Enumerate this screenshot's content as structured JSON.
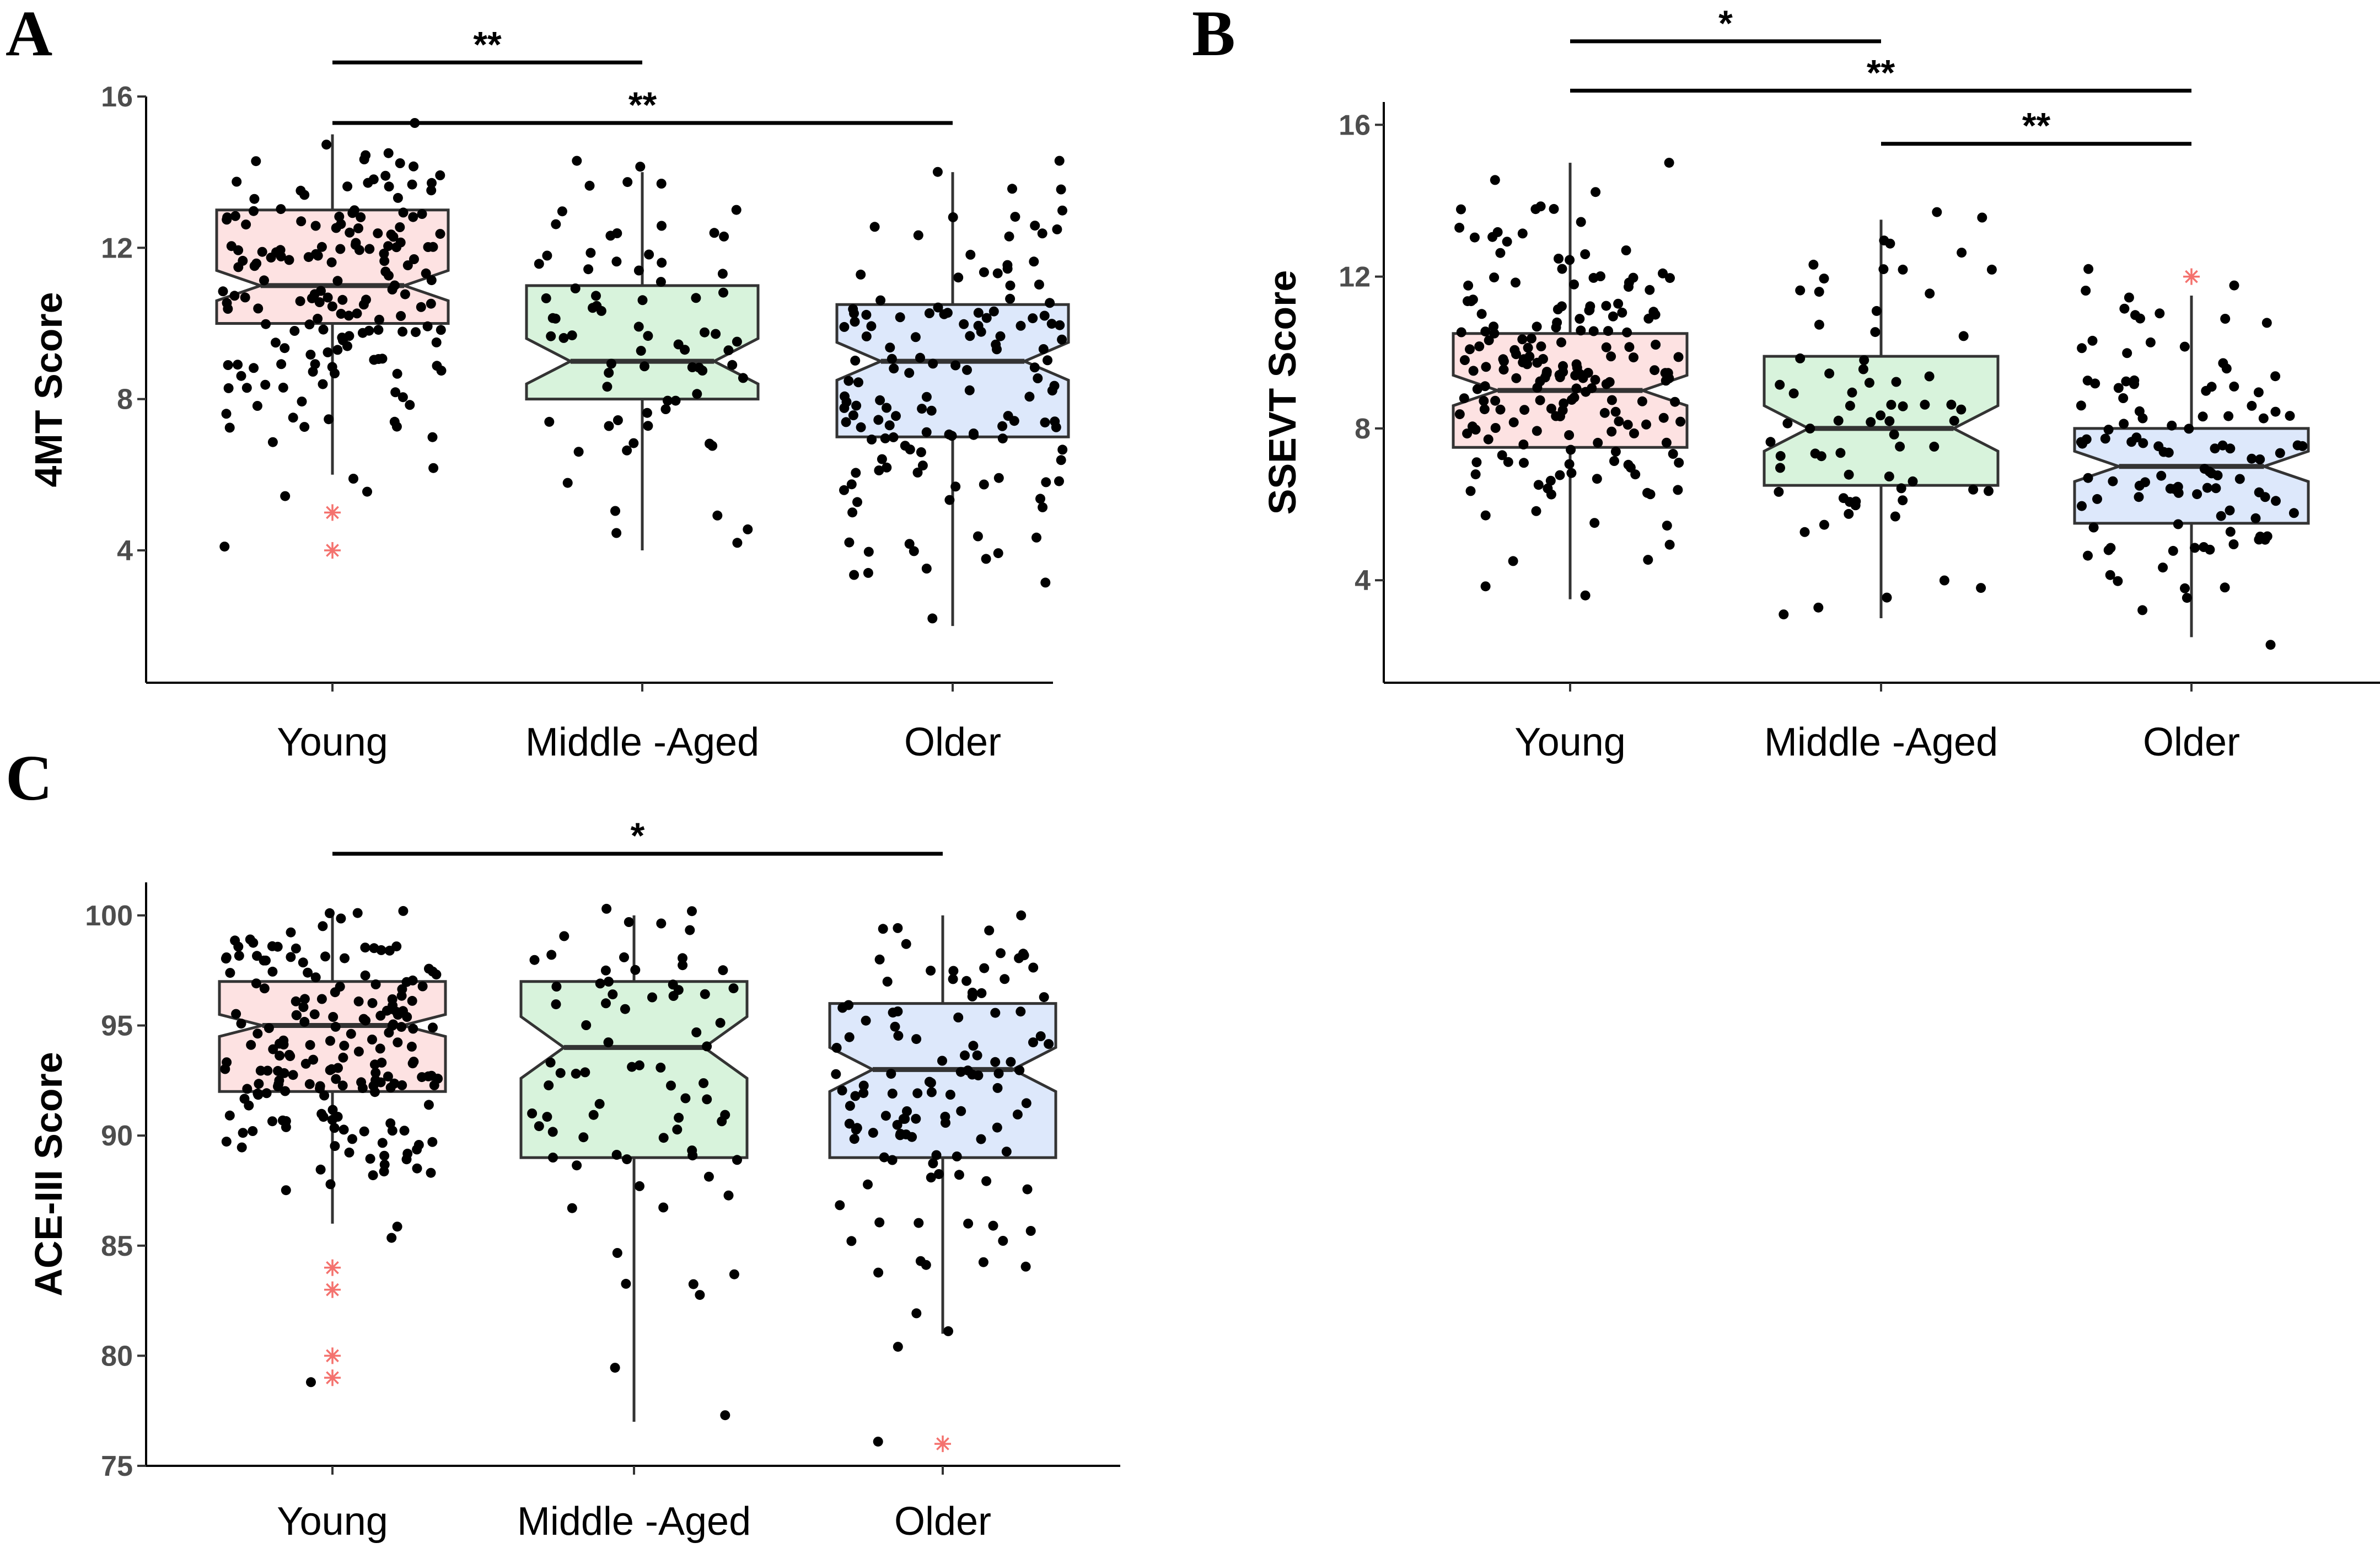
{
  "figure": {
    "background": "#ffffff"
  },
  "style": {
    "group_fills": [
      "#fde2e2",
      "#d8f3dc",
      "#dde8fb"
    ],
    "box_stroke": "#333333",
    "point_color": "#000000",
    "outlier_color": "#f4726e"
  },
  "chart_data": [
    {
      "panel": "A",
      "type": "boxplot",
      "notched": true,
      "ylabel": "4MT Score",
      "xlabel": "",
      "ylim": [
        0.5,
        16
      ],
      "yticks": [
        4,
        8,
        12,
        16
      ],
      "categories": [
        "Young",
        "Middle -Aged",
        "Older"
      ],
      "boxes": [
        {
          "group": "Young",
          "whisker_low": 6,
          "q1": 10,
          "median": 11,
          "q3": 13,
          "whisker_high": 15,
          "notch_low": 10.6,
          "notch_high": 11.4,
          "outliers": [
            5,
            4
          ]
        },
        {
          "group": "Middle -Aged",
          "whisker_low": 4,
          "q1": 8,
          "median": 9,
          "q3": 11,
          "whisker_high": 14,
          "notch_low": 8.4,
          "notch_high": 9.6,
          "outliers": []
        },
        {
          "group": "Older",
          "whisker_low": 2,
          "q1": 7,
          "median": 9,
          "q3": 10.5,
          "whisker_high": 14,
          "notch_low": 8.5,
          "notch_high": 9.5,
          "outliers": []
        }
      ],
      "jitter": [
        {
          "group": "Young",
          "n": 170,
          "min": 4.1,
          "max": 15.3,
          "mean": 11,
          "sd": 2.2
        },
        {
          "group": "Middle -Aged",
          "n": 75,
          "min": 4.2,
          "max": 14.3,
          "mean": 9.3,
          "sd": 2.4
        },
        {
          "group": "Older",
          "n": 140,
          "min": 2.2,
          "max": 14.3,
          "mean": 8.8,
          "sd": 2.7
        }
      ],
      "significance": [
        {
          "from": 0,
          "to": 1,
          "label": "**",
          "y": 16.9
        },
        {
          "from": 0,
          "to": 2,
          "label": "**",
          "y": 15.3
        }
      ]
    },
    {
      "panel": "B",
      "type": "boxplot",
      "notched": true,
      "ylabel": "SSEVT Score",
      "xlabel": "",
      "ylim": [
        1.3,
        16.6
      ],
      "yticks": [
        4,
        8,
        12,
        16
      ],
      "categories": [
        "Young",
        "Middle -Aged",
        "Older"
      ],
      "boxes": [
        {
          "group": "Young",
          "whisker_low": 3.5,
          "q1": 7.5,
          "median": 9,
          "q3": 10.5,
          "whisker_high": 15,
          "notch_low": 8.6,
          "notch_high": 9.4,
          "outliers": []
        },
        {
          "group": "Middle -Aged",
          "whisker_low": 3,
          "q1": 6.5,
          "median": 8,
          "q3": 9.9,
          "whisker_high": 13.5,
          "notch_low": 7.4,
          "notch_high": 8.6,
          "outliers": []
        },
        {
          "group": "Older",
          "whisker_low": 2.5,
          "q1": 5.5,
          "median": 7,
          "q3": 8,
          "whisker_high": 11.5,
          "notch_low": 6.6,
          "notch_high": 7.4,
          "outliers": [
            12
          ]
        }
      ],
      "jitter": [
        {
          "group": "Young",
          "n": 190,
          "min": 3.6,
          "max": 15,
          "mean": 9,
          "sd": 2.1
        },
        {
          "group": "Middle -Aged",
          "n": 70,
          "min": 3.1,
          "max": 13.7,
          "mean": 8.1,
          "sd": 2.3
        },
        {
          "group": "Older",
          "n": 110,
          "min": 2.3,
          "max": 12.2,
          "mean": 6.9,
          "sd": 2.1
        }
      ],
      "significance": [
        {
          "from": 0,
          "to": 1,
          "label": "*",
          "y": 18.2
        },
        {
          "from": 0,
          "to": 2,
          "label": "**",
          "y": 16.9
        },
        {
          "from": 1,
          "to": 2,
          "label": "**",
          "y": 15.5
        }
      ]
    },
    {
      "panel": "C",
      "type": "boxplot",
      "notched": true,
      "ylabel": "ACE-III Score",
      "xlabel": "",
      "ylim": [
        75,
        101.5
      ],
      "yticks": [
        75,
        80,
        85,
        90,
        95,
        100
      ],
      "categories": [
        "Young",
        "Middle -Aged",
        "Older"
      ],
      "boxes": [
        {
          "group": "Young",
          "whisker_low": 86,
          "q1": 92,
          "median": 95,
          "q3": 97,
          "whisker_high": 100,
          "notch_low": 94.5,
          "notch_high": 95.5,
          "outliers": [
            84,
            83,
            80,
            79
          ]
        },
        {
          "group": "Middle -Aged",
          "whisker_low": 77,
          "q1": 89,
          "median": 94,
          "q3": 97,
          "whisker_high": 100,
          "notch_low": 92.6,
          "notch_high": 95.4,
          "outliers": []
        },
        {
          "group": "Older",
          "whisker_low": 81,
          "q1": 89,
          "median": 93,
          "q3": 96,
          "whisker_high": 100,
          "notch_low": 92,
          "notch_high": 94,
          "outliers": [
            76
          ]
        }
      ],
      "jitter": [
        {
          "group": "Young",
          "n": 190,
          "min": 78.8,
          "max": 100.2,
          "mean": 94.2,
          "sd": 3.6
        },
        {
          "group": "Middle -Aged",
          "n": 75,
          "min": 77.3,
          "max": 100.3,
          "mean": 93,
          "sd": 5
        },
        {
          "group": "Older",
          "n": 115,
          "min": 76.1,
          "max": 100,
          "mean": 92.5,
          "sd": 4.8
        }
      ],
      "significance": [
        {
          "from": 0,
          "to": 2,
          "label": "*",
          "y": 102.8
        }
      ]
    }
  ]
}
